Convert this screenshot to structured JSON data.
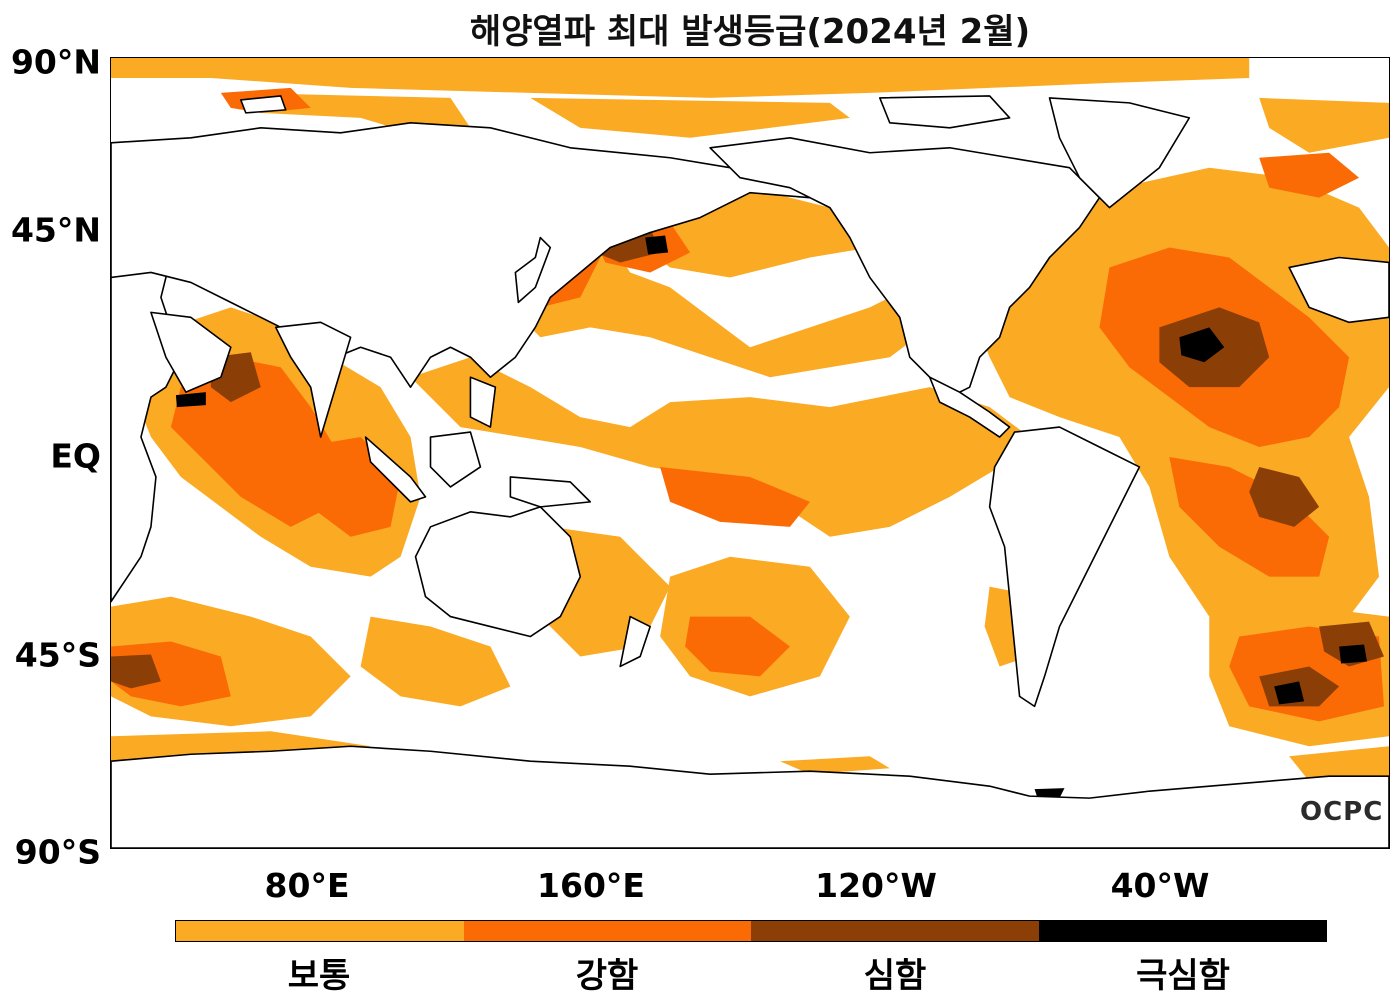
{
  "title": "해양열파 최대 발생등급(2024년 2월)",
  "lat_labels": [
    "90°N",
    "45°N",
    "EQ",
    "45°S",
    "90°S"
  ],
  "lon_labels": [
    "80°E",
    "160°E",
    "120°W",
    "40°W"
  ],
  "legend": [
    {
      "label": "보통",
      "color": "#fbaa24"
    },
    {
      "label": "강함",
      "color": "#fb6b05"
    },
    {
      "label": "심함",
      "color": "#8b3f06"
    },
    {
      "label": "극심함",
      "color": "#000000"
    }
  ],
  "watermark": "OCPC",
  "colors": {
    "ocean": "#ffffff",
    "land": "#ffffff",
    "coast": "#000000"
  }
}
